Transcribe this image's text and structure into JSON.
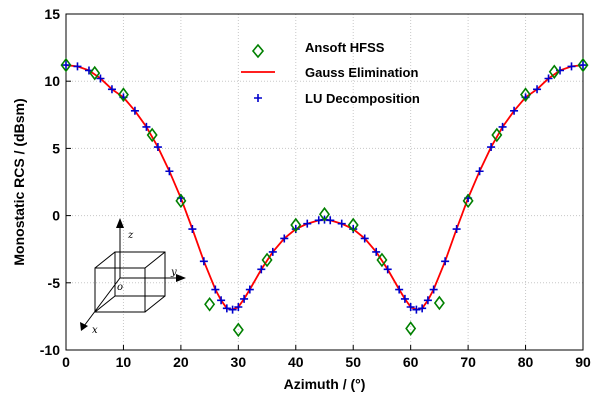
{
  "chart_data": {
    "type": "line",
    "title": "",
    "xlabel": "Azimuth / (°)",
    "ylabel": "Monostatic RCS / (dBsm)",
    "xlim": [
      0,
      90
    ],
    "ylim": [
      -10,
      15
    ],
    "xticks": [
      0,
      10,
      20,
      30,
      40,
      50,
      60,
      70,
      80,
      90
    ],
    "yticks": [
      -10,
      -5,
      0,
      5,
      10,
      15
    ],
    "grid": true,
    "legend_position": "top-center",
    "series": [
      {
        "name": "Ansoft HFSS",
        "marker": "diamond",
        "color": "#008000",
        "x": [
          0,
          5,
          10,
          15,
          20,
          25,
          30,
          35,
          40,
          45,
          50,
          55,
          60,
          65,
          70,
          75,
          80,
          85,
          90
        ],
        "y": [
          11.2,
          10.6,
          9.0,
          6.0,
          1.1,
          -6.6,
          -8.5,
          -3.3,
          -0.7,
          0.1,
          -0.7,
          -3.3,
          -8.4,
          -6.5,
          1.1,
          6.0,
          9.0,
          10.7,
          11.2
        ]
      },
      {
        "name": "Gauss Elimination",
        "marker": "line",
        "color": "#ff0000",
        "x": [
          0,
          2,
          4,
          6,
          8,
          10,
          12,
          14,
          16,
          18,
          20,
          22,
          24,
          26,
          27,
          28,
          29,
          30,
          31,
          32,
          34,
          36,
          38,
          40,
          42,
          44,
          45,
          46,
          48,
          50,
          52,
          54,
          56,
          58,
          59,
          60,
          61,
          62,
          63,
          64,
          66,
          68,
          70,
          72,
          74,
          76,
          78,
          80,
          82,
          84,
          86,
          88,
          90
        ],
        "y": [
          11.2,
          11.1,
          10.8,
          10.2,
          9.4,
          8.8,
          7.8,
          6.6,
          5.1,
          3.3,
          1.3,
          -1.0,
          -3.4,
          -5.5,
          -6.3,
          -6.9,
          -7.0,
          -6.8,
          -6.2,
          -5.5,
          -4.0,
          -2.7,
          -1.7,
          -1.0,
          -0.6,
          -0.35,
          -0.3,
          -0.35,
          -0.6,
          -1.0,
          -1.7,
          -2.7,
          -4.0,
          -5.5,
          -6.2,
          -6.8,
          -7.0,
          -6.9,
          -6.3,
          -5.5,
          -3.4,
          -1.0,
          1.3,
          3.3,
          5.1,
          6.6,
          7.8,
          8.8,
          9.4,
          10.2,
          10.8,
          11.1,
          11.2
        ]
      },
      {
        "name": "LU Decomposition",
        "marker": "plus",
        "color": "#0000cc",
        "x": [
          0,
          2,
          4,
          6,
          8,
          10,
          12,
          14,
          16,
          18,
          20,
          22,
          24,
          26,
          27,
          28,
          29,
          30,
          31,
          32,
          34,
          36,
          38,
          40,
          42,
          44,
          45,
          46,
          48,
          50,
          52,
          54,
          56,
          58,
          59,
          60,
          61,
          62,
          63,
          64,
          66,
          68,
          70,
          72,
          74,
          76,
          78,
          80,
          82,
          84,
          86,
          88,
          90
        ],
        "y": [
          11.2,
          11.1,
          10.8,
          10.2,
          9.4,
          8.8,
          7.8,
          6.6,
          5.1,
          3.3,
          1.3,
          -1.0,
          -3.4,
          -5.5,
          -6.3,
          -6.9,
          -7.0,
          -6.8,
          -6.2,
          -5.5,
          -4.0,
          -2.7,
          -1.7,
          -1.0,
          -0.6,
          -0.35,
          -0.3,
          -0.35,
          -0.6,
          -1.0,
          -1.7,
          -2.7,
          -4.0,
          -5.5,
          -6.2,
          -6.8,
          -7.0,
          -6.9,
          -6.3,
          -5.5,
          -3.4,
          -1.0,
          1.3,
          3.3,
          5.1,
          6.6,
          7.8,
          8.8,
          9.4,
          10.2,
          10.8,
          11.1,
          11.2
        ]
      }
    ],
    "inset": {
      "axis_labels": [
        "z",
        "y",
        "x",
        "o"
      ]
    }
  }
}
